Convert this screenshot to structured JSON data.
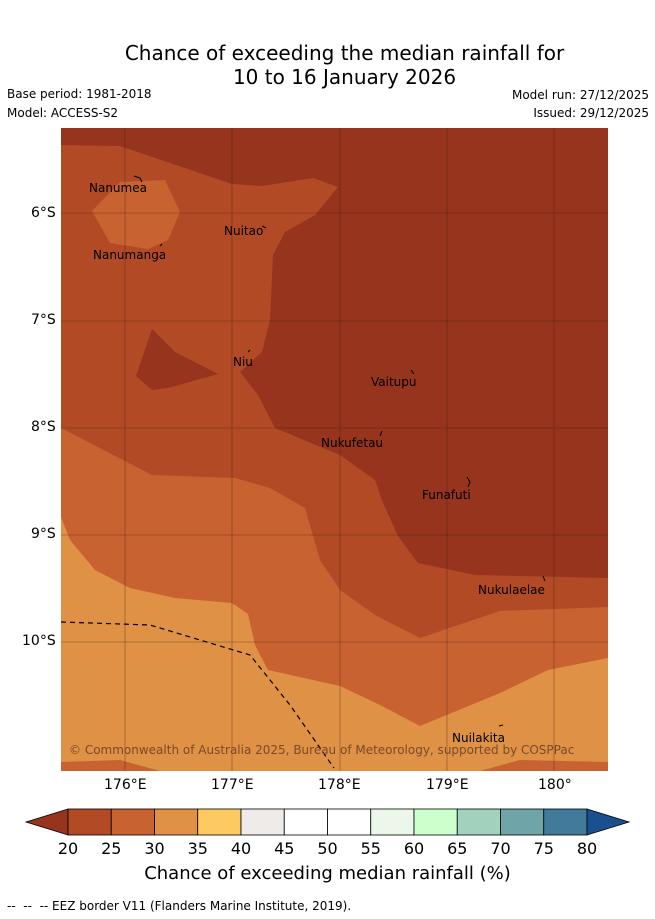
{
  "title": {
    "line1": "Chance of exceeding the median rainfall for",
    "line2": "10 to 16 January 2026"
  },
  "meta": {
    "base_period": "Base period: 1981-2018",
    "model": "Model: ACCESS-S2",
    "model_run": "Model run: 27/12/2025",
    "issued": "Issued: 29/12/2025"
  },
  "map": {
    "places": [
      {
        "name": "Nanumea"
      },
      {
        "name": "Nuitao"
      },
      {
        "name": "Nanumanga"
      },
      {
        "name": "Niu"
      },
      {
        "name": "Vaitupu"
      },
      {
        "name": "Nukufetau"
      },
      {
        "name": "Funafuti"
      },
      {
        "name": "Nukulaelae"
      },
      {
        "name": "Nuilakita"
      }
    ],
    "lat_labels": [
      "6°S",
      "7°S",
      "8°S",
      "9°S",
      "10°S"
    ],
    "lon_labels": [
      "176°E",
      "177°E",
      "178°E",
      "179°E",
      "180°"
    ],
    "copyright": "© Commonwealth of Australia 2025, Bureau of Meteorology, supported by COSPPac",
    "colors": {
      "band_20_25": "#b24a26",
      "band_25_30": "#c96231",
      "band_30_35": "#df9145",
      "below_20": "#96341e"
    }
  },
  "colorbar": {
    "label": "Chance of exceeding median rainfall (%)",
    "ticks": [
      "20",
      "25",
      "30",
      "35",
      "40",
      "45",
      "50",
      "55",
      "60",
      "65",
      "70",
      "75",
      "80"
    ],
    "colors": [
      "#96341e",
      "#b24a26",
      "#c96231",
      "#df9145",
      "#fdca62",
      "#eeebe8",
      "#ffffff",
      "#ffffff",
      "#eaf7ea",
      "#ccffcc",
      "#a0d2be",
      "#6fa5a8",
      "#417b9c",
      "#1a5090"
    ]
  },
  "footer": {
    "eez": "--  --  -- EEZ border V11 (Flanders Marine Institute, 2019)."
  }
}
